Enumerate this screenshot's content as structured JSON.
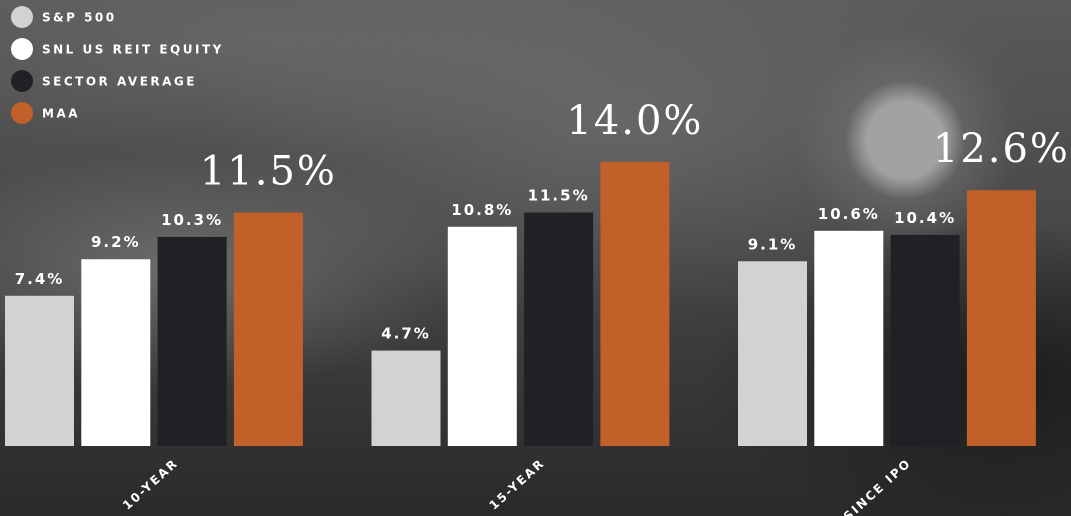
{
  "chart_data": {
    "type": "bar",
    "categories": [
      "10-YEAR",
      "15-YEAR",
      "SINCE IPO"
    ],
    "series": [
      {
        "name": "S&P 500",
        "color": "#d2d2d2",
        "values": [
          7.4,
          4.7,
          9.1
        ],
        "value_labels": [
          "7.4%",
          "4.7%",
          "9.1%"
        ]
      },
      {
        "name": "SNL US REIT EQUITY",
        "color": "#ffffff",
        "values": [
          9.2,
          10.8,
          10.6
        ],
        "value_labels": [
          "9.2%",
          "10.8%",
          "10.6%"
        ]
      },
      {
        "name": "SECTOR AVERAGE",
        "color": "#202124",
        "values": [
          10.3,
          11.5,
          10.4
        ],
        "value_labels": [
          "10.3%",
          "11.5%",
          "10.4%"
        ]
      },
      {
        "name": "MAA",
        "color": "#c2602a",
        "values": [
          11.5,
          14.0,
          12.6
        ],
        "value_labels": [
          "11.5%",
          "14.0%",
          "12.6%"
        ]
      }
    ]
  }
}
